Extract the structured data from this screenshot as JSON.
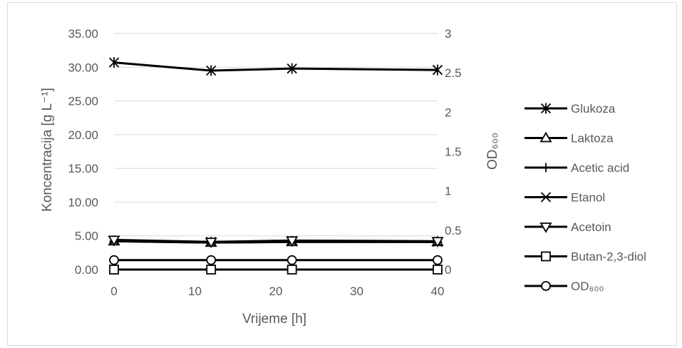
{
  "chart_data": {
    "type": "line",
    "xlabel": "Vrijeme [h]",
    "ylabel": "Koncentracija [g L⁻¹]",
    "y2label": "OD₆₀₀",
    "xlim": [
      0,
      40
    ],
    "ylim": [
      0,
      35
    ],
    "y2lim": [
      0,
      3
    ],
    "xticks": [
      "0",
      "10",
      "20",
      "30",
      "40"
    ],
    "yticks": [
      "0.00",
      "5.00",
      "10.00",
      "15.00",
      "20.00",
      "25.00",
      "30.00",
      "35.00"
    ],
    "y2ticks": [
      "0",
      "0.5",
      "1",
      "1.5",
      "2",
      "2.5",
      "3"
    ],
    "grid": "horizontal",
    "legend_position": "right",
    "colors": {
      "series": "#000000",
      "grid": "#d9d9d9",
      "text": "#595959"
    },
    "series": [
      {
        "name": "Glukoza",
        "axis": "left",
        "marker": "asterisk",
        "x": [
          0,
          12,
          22,
          40
        ],
        "y": [
          30.7,
          29.5,
          29.8,
          29.6
        ]
      },
      {
        "name": "Laktoza",
        "axis": "left",
        "marker": "triangle-up",
        "x": [
          0,
          12,
          22,
          40
        ],
        "y": [
          4.2,
          4.0,
          4.1,
          4.1
        ]
      },
      {
        "name": "Acetic acid",
        "axis": "left",
        "marker": "plus",
        "x": [
          0,
          12,
          22,
          40
        ],
        "y": [
          4.2,
          4.0,
          4.1,
          4.1
        ]
      },
      {
        "name": "Etanol",
        "axis": "left",
        "marker": "x",
        "x": [
          0,
          12,
          22,
          40
        ],
        "y": [
          4.3,
          4.1,
          4.2,
          4.1
        ]
      },
      {
        "name": "Acetoin",
        "axis": "left",
        "marker": "triangle-down",
        "x": [
          0,
          12,
          22,
          40
        ],
        "y": [
          4.4,
          4.1,
          4.3,
          4.2
        ]
      },
      {
        "name": "Butan-2,3-diol",
        "axis": "left",
        "marker": "square",
        "x": [
          0,
          12,
          22,
          40
        ],
        "y": [
          0.0,
          0.0,
          0.0,
          0.0
        ]
      },
      {
        "name": "OD₆₀₀",
        "axis": "right",
        "marker": "circle",
        "x": [
          0,
          12,
          22,
          40
        ],
        "y": [
          0.12,
          0.12,
          0.12,
          0.12
        ]
      }
    ]
  }
}
